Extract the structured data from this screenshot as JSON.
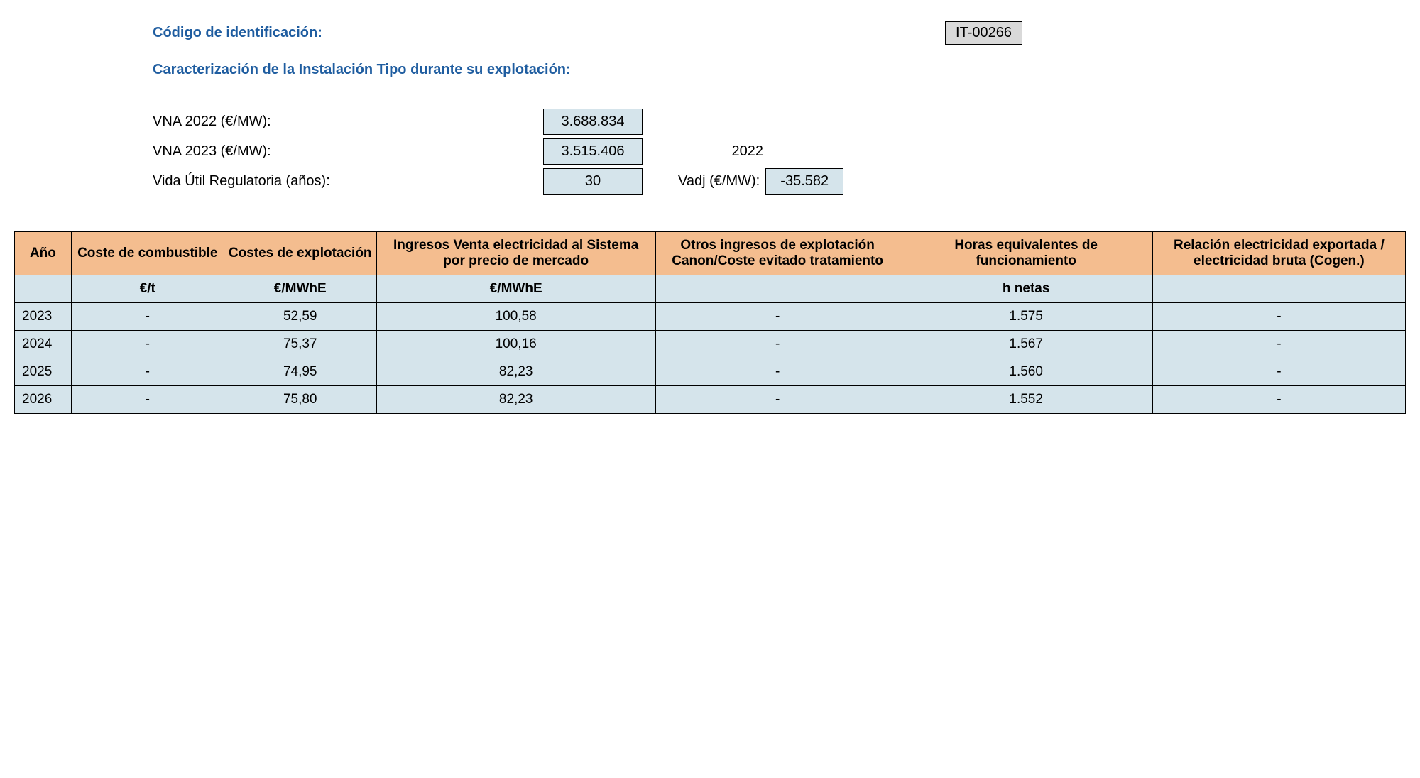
{
  "header": {
    "id_label": "Código de identificación:",
    "id_value": "IT-00266",
    "subtitle": "Caracterización de la Instalación Tipo durante su explotación:"
  },
  "params": {
    "vna2022_label": "VNA 2022 (€/MW):",
    "vna2022_value": "3.688.834",
    "vna2023_label": "VNA 2023 (€/MW):",
    "vna2023_value": "3.515.406",
    "vida_label": "Vida Útil Regulatoria (años):",
    "vida_value": "30",
    "year_label": "2022",
    "vadj_label": "Vadj (€/MW):",
    "vadj_value": "-35.582"
  },
  "table": {
    "columns": [
      "Año",
      "Coste de combustible",
      "Costes de explotación",
      "Ingresos Venta electricidad al Sistema por precio de mercado",
      "Otros ingresos de explotación Canon/Coste evitado tratamiento",
      "Horas equivalentes de funcionamiento",
      "Relación electricidad exportada / electricidad bruta (Cogen.)"
    ],
    "units": [
      "",
      "€/t",
      "€/MWhE",
      "€/MWhE",
      "",
      "h netas",
      ""
    ],
    "rows": [
      [
        "2023",
        "-",
        "52,59",
        "100,58",
        "-",
        "1.575",
        "-"
      ],
      [
        "2024",
        "-",
        "75,37",
        "100,16",
        "-",
        "1.567",
        "-"
      ],
      [
        "2025",
        "-",
        "74,95",
        "82,23",
        "-",
        "1.560",
        "-"
      ],
      [
        "2026",
        "-",
        "75,80",
        "82,23",
        "-",
        "1.552",
        "-"
      ]
    ],
    "header_bg": "#f4bd8f",
    "cell_bg": "#d5e4eb",
    "border_color": "#000000"
  }
}
